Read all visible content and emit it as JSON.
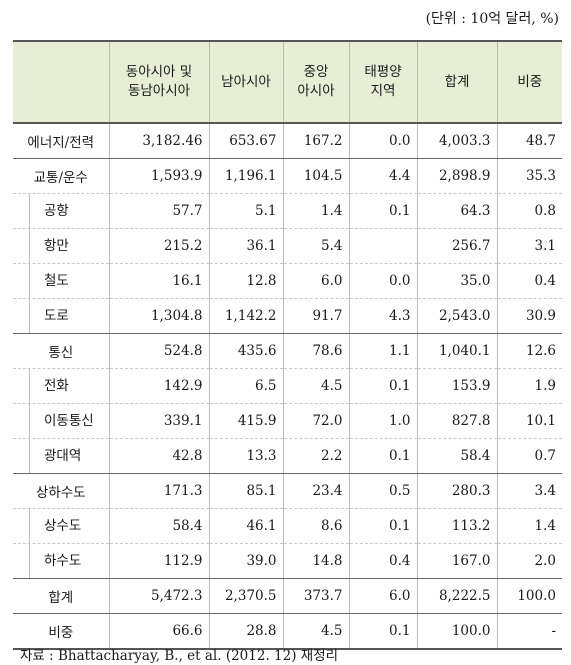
{
  "unit_note": "(단위 : 10억 달러, %)",
  "headers": [
    "",
    "동아시아 및\n동남아시아",
    "남아시아",
    "중앙\n아시아",
    "태평양\n지역",
    "합계",
    "비중"
  ],
  "rows": [
    {
      "label": "에너지/전력",
      "sub": false,
      "end": true,
      "cells": [
        "3,182.46",
        "653.67",
        "167.2",
        "0.0",
        "4,003.3",
        "48.7"
      ]
    },
    {
      "label": "교통/운수",
      "sub": false,
      "end": false,
      "cells": [
        "1,593.9",
        "1,196.1",
        "104.5",
        "4.4",
        "2,898.9",
        "35.3"
      ]
    },
    {
      "label": "공항",
      "sub": true,
      "end": false,
      "cells": [
        "57.7",
        "5.1",
        "1.4",
        "0.1",
        "64.3",
        "0.8"
      ]
    },
    {
      "label": "항만",
      "sub": true,
      "end": false,
      "cells": [
        "215.2",
        "36.1",
        "5.4",
        "",
        "256.7",
        "3.1"
      ]
    },
    {
      "label": "철도",
      "sub": true,
      "end": false,
      "cells": [
        "16.1",
        "12.8",
        "6.0",
        "0.0",
        "35.0",
        "0.4"
      ]
    },
    {
      "label": "도로",
      "sub": true,
      "end": true,
      "cells": [
        "1,304.8",
        "1,142.2",
        "91.7",
        "4.3",
        "2,543.0",
        "30.9"
      ]
    },
    {
      "label": "통신",
      "sub": false,
      "end": false,
      "cells": [
        "524.8",
        "435.6",
        "78.6",
        "1.1",
        "1,040.1",
        "12.6"
      ]
    },
    {
      "label": "전화",
      "sub": true,
      "end": false,
      "cells": [
        "142.9",
        "6.5",
        "4.5",
        "0.1",
        "153.9",
        "1.9"
      ]
    },
    {
      "label": "이동통신",
      "sub": true,
      "end": false,
      "cells": [
        "339.1",
        "415.9",
        "72.0",
        "1.0",
        "827.8",
        "10.1"
      ]
    },
    {
      "label": "광대역",
      "sub": true,
      "end": true,
      "cells": [
        "42.8",
        "13.3",
        "2.2",
        "0.1",
        "58.4",
        "0.7"
      ]
    },
    {
      "label": "상하수도",
      "sub": false,
      "end": false,
      "cells": [
        "171.3",
        "85.1",
        "23.4",
        "0.5",
        "280.3",
        "3.4"
      ]
    },
    {
      "label": "상수도",
      "sub": true,
      "end": false,
      "cells": [
        "58.4",
        "46.1",
        "8.6",
        "0.1",
        "113.2",
        "1.4"
      ]
    },
    {
      "label": "하수도",
      "sub": true,
      "end": true,
      "cells": [
        "112.9",
        "39.0",
        "14.8",
        "0.4",
        "167.0",
        "2.0"
      ]
    },
    {
      "label": "합계",
      "sub": false,
      "end": true,
      "cells": [
        "5,472.3",
        "2,370.5",
        "373.7",
        "6.0",
        "8,222.5",
        "100.0"
      ]
    },
    {
      "label": "비중",
      "sub": false,
      "end": false,
      "cells": [
        "66.6",
        "28.8",
        "4.5",
        "0.1",
        "100.0",
        "-"
      ]
    }
  ],
  "source": "자료 : Bhattacharyay, B., et al. (2012. 12) 재정리"
}
